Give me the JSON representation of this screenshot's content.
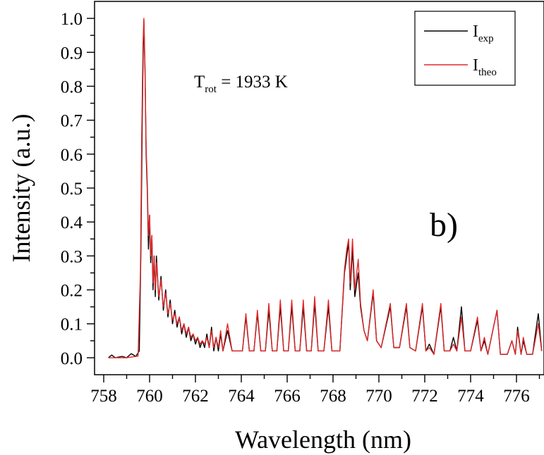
{
  "chart_data": {
    "type": "line",
    "xlabel": "Wavelength (nm)",
    "ylabel": "Intensity (a.u.)",
    "xlim": [
      757.6,
      777.2
    ],
    "ylim": [
      -0.05,
      1.05
    ],
    "x_ticks": [
      758,
      760,
      762,
      764,
      766,
      768,
      770,
      772,
      774,
      776
    ],
    "y_ticks": [
      0.0,
      0.1,
      0.2,
      0.3,
      0.4,
      0.5,
      0.6,
      0.7,
      0.8,
      0.9,
      1.0
    ],
    "grid": false,
    "legend_position": "top-right",
    "annotation": {
      "main": "T",
      "sub": "rot",
      "rest": " = 1933 K"
    },
    "panel_label": "b)",
    "series": [
      {
        "label_main": "I",
        "label_sub": "exp",
        "color": "#000000",
        "points": [
          [
            758.2,
            0.0
          ],
          [
            758.35,
            0.008
          ],
          [
            758.5,
            0.0
          ],
          [
            758.8,
            0.004
          ],
          [
            759.0,
            0.0
          ],
          [
            759.2,
            0.012
          ],
          [
            759.4,
            0.004
          ],
          [
            759.55,
            0.02
          ],
          [
            759.62,
            0.3
          ],
          [
            759.68,
            0.7
          ],
          [
            759.72,
            0.9
          ],
          [
            759.75,
            0.995
          ],
          [
            759.8,
            0.85
          ],
          [
            759.85,
            0.6
          ],
          [
            759.9,
            0.5
          ],
          [
            759.95,
            0.32
          ],
          [
            760.0,
            0.42
          ],
          [
            760.05,
            0.28
          ],
          [
            760.1,
            0.36
          ],
          [
            760.15,
            0.2
          ],
          [
            760.2,
            0.3
          ],
          [
            760.25,
            0.18
          ],
          [
            760.3,
            0.3
          ],
          [
            760.4,
            0.17
          ],
          [
            760.5,
            0.24
          ],
          [
            760.6,
            0.14
          ],
          [
            760.7,
            0.2
          ],
          [
            760.8,
            0.12
          ],
          [
            760.9,
            0.17
          ],
          [
            761.0,
            0.1
          ],
          [
            761.1,
            0.14
          ],
          [
            761.2,
            0.09
          ],
          [
            761.3,
            0.12
          ],
          [
            761.4,
            0.07
          ],
          [
            761.5,
            0.1
          ],
          [
            761.6,
            0.06
          ],
          [
            761.7,
            0.09
          ],
          [
            761.8,
            0.05
          ],
          [
            761.9,
            0.07
          ],
          [
            762.0,
            0.04
          ],
          [
            762.1,
            0.06
          ],
          [
            762.2,
            0.03
          ],
          [
            762.3,
            0.05
          ],
          [
            762.4,
            0.03
          ],
          [
            762.5,
            0.07
          ],
          [
            762.6,
            0.03
          ],
          [
            762.7,
            0.09
          ],
          [
            762.8,
            0.02
          ],
          [
            762.9,
            0.06
          ],
          [
            763.0,
            0.02
          ],
          [
            763.1,
            0.07
          ],
          [
            763.2,
            0.02
          ],
          [
            763.4,
            0.08
          ],
          [
            763.6,
            0.02
          ],
          [
            764.05,
            0.02
          ],
          [
            764.2,
            0.12
          ],
          [
            764.35,
            0.02
          ],
          [
            764.55,
            0.02
          ],
          [
            764.7,
            0.13
          ],
          [
            764.85,
            0.02
          ],
          [
            765.05,
            0.02
          ],
          [
            765.2,
            0.14
          ],
          [
            765.35,
            0.02
          ],
          [
            765.55,
            0.02
          ],
          [
            765.7,
            0.15
          ],
          [
            765.85,
            0.02
          ],
          [
            766.05,
            0.02
          ],
          [
            766.2,
            0.15
          ],
          [
            766.35,
            0.02
          ],
          [
            766.55,
            0.02
          ],
          [
            766.7,
            0.15
          ],
          [
            766.85,
            0.02
          ],
          [
            767.05,
            0.02
          ],
          [
            767.2,
            0.16
          ],
          [
            767.35,
            0.02
          ],
          [
            767.6,
            0.02
          ],
          [
            767.8,
            0.15
          ],
          [
            767.95,
            0.02
          ],
          [
            768.3,
            0.02
          ],
          [
            768.5,
            0.25
          ],
          [
            768.6,
            0.3
          ],
          [
            768.68,
            0.34
          ],
          [
            768.75,
            0.2
          ],
          [
            768.85,
            0.32
          ],
          [
            768.95,
            0.18
          ],
          [
            769.1,
            0.25
          ],
          [
            769.2,
            0.15
          ],
          [
            769.35,
            0.08
          ],
          [
            769.5,
            0.05
          ],
          [
            769.75,
            0.19
          ],
          [
            769.9,
            0.05
          ],
          [
            770.1,
            0.03
          ],
          [
            770.5,
            0.15
          ],
          [
            770.65,
            0.03
          ],
          [
            770.9,
            0.03
          ],
          [
            771.2,
            0.15
          ],
          [
            771.35,
            0.03
          ],
          [
            771.6,
            0.02
          ],
          [
            771.9,
            0.15
          ],
          [
            772.05,
            0.02
          ],
          [
            772.2,
            0.04
          ],
          [
            772.4,
            0.01
          ],
          [
            772.7,
            0.15
          ],
          [
            772.85,
            0.02
          ],
          [
            773.1,
            0.02
          ],
          [
            773.25,
            0.06
          ],
          [
            773.4,
            0.02
          ],
          [
            773.6,
            0.15
          ],
          [
            773.75,
            0.02
          ],
          [
            774.0,
            0.02
          ],
          [
            774.3,
            0.11
          ],
          [
            774.45,
            0.02
          ],
          [
            774.6,
            0.05
          ],
          [
            774.75,
            0.01
          ],
          [
            775.15,
            0.14
          ],
          [
            775.3,
            0.01
          ],
          [
            775.6,
            0.01
          ],
          [
            775.8,
            0.05
          ],
          [
            775.95,
            0.01
          ],
          [
            776.05,
            0.09
          ],
          [
            776.2,
            0.01
          ],
          [
            776.3,
            0.05
          ],
          [
            776.45,
            0.01
          ],
          [
            776.7,
            0.01
          ],
          [
            776.95,
            0.13
          ],
          [
            777.1,
            0.02
          ]
        ]
      },
      {
        "label_main": "I",
        "label_sub": "theo",
        "color": "#e0282a",
        "points": [
          [
            758.2,
            0.0
          ],
          [
            758.5,
            0.0
          ],
          [
            759.0,
            0.0
          ],
          [
            759.5,
            0.005
          ],
          [
            759.6,
            0.25
          ],
          [
            759.66,
            0.66
          ],
          [
            759.71,
            0.92
          ],
          [
            759.75,
            1.0
          ],
          [
            759.8,
            0.86
          ],
          [
            759.85,
            0.62
          ],
          [
            759.9,
            0.52
          ],
          [
            759.95,
            0.36
          ],
          [
            760.0,
            0.42
          ],
          [
            760.05,
            0.3
          ],
          [
            760.1,
            0.36
          ],
          [
            760.15,
            0.22
          ],
          [
            760.2,
            0.3
          ],
          [
            760.25,
            0.2
          ],
          [
            760.3,
            0.28
          ],
          [
            760.4,
            0.18
          ],
          [
            760.5,
            0.23
          ],
          [
            760.6,
            0.15
          ],
          [
            760.7,
            0.19
          ],
          [
            760.8,
            0.13
          ],
          [
            760.9,
            0.16
          ],
          [
            761.0,
            0.11
          ],
          [
            761.1,
            0.13
          ],
          [
            761.2,
            0.1
          ],
          [
            761.3,
            0.12
          ],
          [
            761.4,
            0.08
          ],
          [
            761.5,
            0.1
          ],
          [
            761.6,
            0.07
          ],
          [
            761.7,
            0.09
          ],
          [
            761.8,
            0.06
          ],
          [
            761.9,
            0.07
          ],
          [
            762.0,
            0.05
          ],
          [
            762.1,
            0.06
          ],
          [
            762.2,
            0.04
          ],
          [
            762.3,
            0.05
          ],
          [
            762.4,
            0.04
          ],
          [
            762.5,
            0.06
          ],
          [
            762.6,
            0.03
          ],
          [
            762.7,
            0.08
          ],
          [
            762.8,
            0.03
          ],
          [
            762.9,
            0.06
          ],
          [
            763.0,
            0.03
          ],
          [
            763.1,
            0.08
          ],
          [
            763.2,
            0.02
          ],
          [
            763.4,
            0.1
          ],
          [
            763.6,
            0.02
          ],
          [
            764.05,
            0.02
          ],
          [
            764.2,
            0.13
          ],
          [
            764.35,
            0.02
          ],
          [
            764.55,
            0.02
          ],
          [
            764.7,
            0.14
          ],
          [
            764.85,
            0.02
          ],
          [
            765.05,
            0.02
          ],
          [
            765.2,
            0.16
          ],
          [
            765.35,
            0.02
          ],
          [
            765.55,
            0.02
          ],
          [
            765.7,
            0.17
          ],
          [
            765.85,
            0.02
          ],
          [
            766.05,
            0.02
          ],
          [
            766.2,
            0.17
          ],
          [
            766.35,
            0.02
          ],
          [
            766.55,
            0.02
          ],
          [
            766.7,
            0.17
          ],
          [
            766.85,
            0.02
          ],
          [
            767.05,
            0.02
          ],
          [
            767.2,
            0.18
          ],
          [
            767.35,
            0.02
          ],
          [
            767.6,
            0.02
          ],
          [
            767.8,
            0.17
          ],
          [
            767.95,
            0.02
          ],
          [
            768.3,
            0.02
          ],
          [
            768.5,
            0.26
          ],
          [
            768.6,
            0.32
          ],
          [
            768.68,
            0.35
          ],
          [
            768.75,
            0.22
          ],
          [
            768.85,
            0.35
          ],
          [
            768.95,
            0.2
          ],
          [
            769.1,
            0.29
          ],
          [
            769.2,
            0.16
          ],
          [
            769.35,
            0.08
          ],
          [
            769.5,
            0.05
          ],
          [
            769.75,
            0.2
          ],
          [
            769.9,
            0.05
          ],
          [
            770.1,
            0.03
          ],
          [
            770.5,
            0.16
          ],
          [
            770.65,
            0.03
          ],
          [
            770.9,
            0.03
          ],
          [
            771.2,
            0.16
          ],
          [
            771.35,
            0.03
          ],
          [
            771.6,
            0.02
          ],
          [
            771.9,
            0.16
          ],
          [
            772.05,
            0.02
          ],
          [
            772.2,
            0.03
          ],
          [
            772.4,
            0.01
          ],
          [
            772.7,
            0.16
          ],
          [
            772.85,
            0.02
          ],
          [
            773.1,
            0.02
          ],
          [
            773.25,
            0.04
          ],
          [
            773.4,
            0.02
          ],
          [
            773.6,
            0.12
          ],
          [
            773.75,
            0.02
          ],
          [
            774.0,
            0.02
          ],
          [
            774.3,
            0.12
          ],
          [
            774.45,
            0.02
          ],
          [
            774.6,
            0.06
          ],
          [
            774.75,
            0.01
          ],
          [
            775.15,
            0.14
          ],
          [
            775.3,
            0.01
          ],
          [
            775.6,
            0.01
          ],
          [
            775.8,
            0.05
          ],
          [
            775.95,
            0.01
          ],
          [
            776.05,
            0.08
          ],
          [
            776.2,
            0.01
          ],
          [
            776.3,
            0.06
          ],
          [
            776.45,
            0.01
          ],
          [
            776.7,
            0.01
          ],
          [
            776.95,
            0.1
          ],
          [
            777.1,
            0.02
          ]
        ]
      }
    ]
  }
}
